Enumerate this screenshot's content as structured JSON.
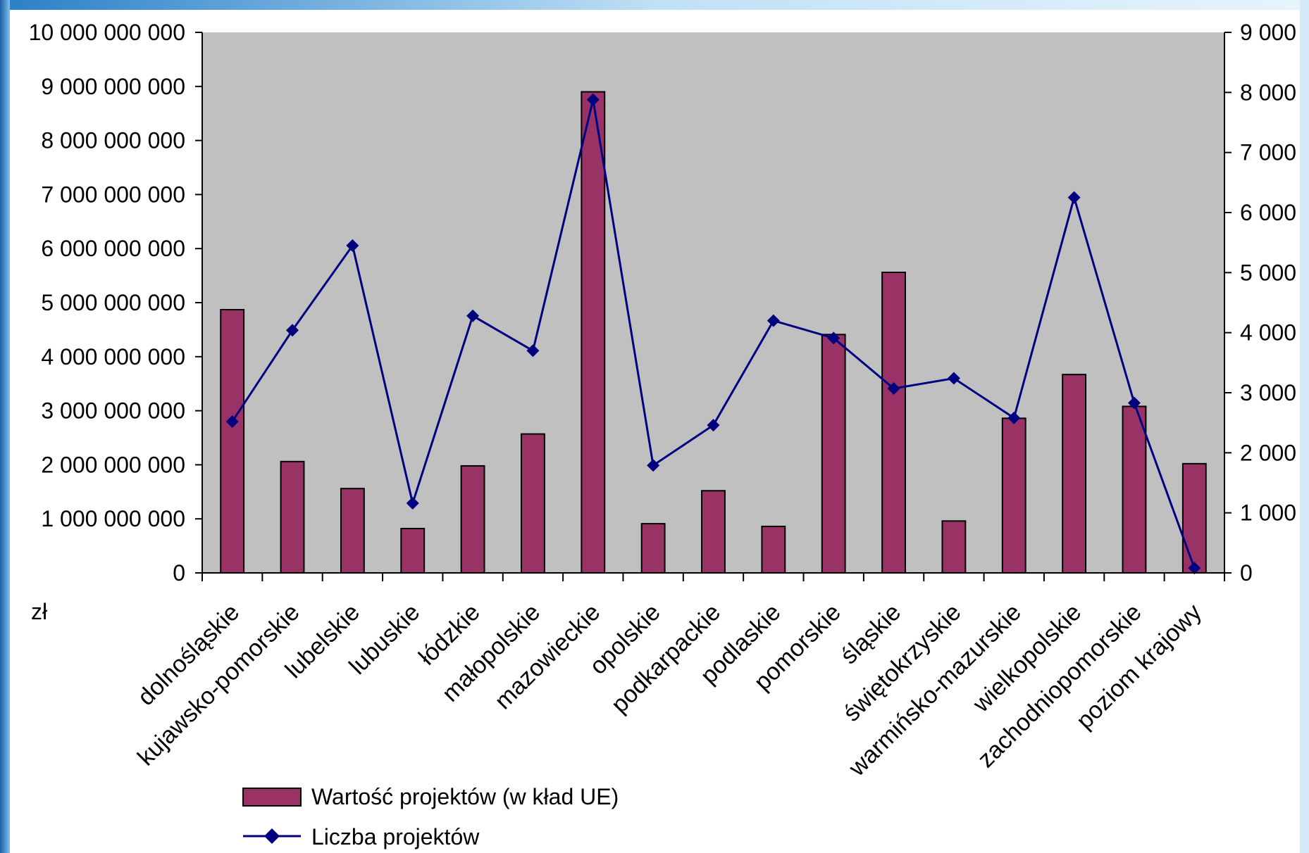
{
  "chart_data": {
    "type": "bar+line",
    "title": "",
    "unit_label": "zł",
    "categories": [
      "dolnośląskie",
      "kujawsko-pomorskie",
      "lubelskie",
      "lubuskie",
      "łódzkie",
      "małopolskie",
      "mazowieckie",
      "opolskie",
      "podkarpackie",
      "podlaskie",
      "pomorskie",
      "śląskie",
      "świętokrzyskie",
      "warmińsko-mazurskie",
      "wielkopolskie",
      "zachodniopomorskie",
      "poziom krajowy"
    ],
    "series": [
      {
        "name": "Wartość projektów  (w kład UE)",
        "type": "bar",
        "axis": "left",
        "values": [
          4870000000,
          2060000000,
          1560000000,
          820000000,
          1980000000,
          2570000000,
          8900000000,
          910000000,
          1520000000,
          860000000,
          4410000000,
          5560000000,
          960000000,
          2860000000,
          3670000000,
          3080000000,
          2020000000
        ]
      },
      {
        "name": "Liczba projektów",
        "type": "line",
        "axis": "right",
        "values": [
          2520,
          4040,
          5450,
          1160,
          4280,
          3700,
          7880,
          1790,
          2460,
          4200,
          3910,
          3070,
          3240,
          2580,
          6250,
          2830,
          80
        ]
      }
    ],
    "y_left": {
      "ylim": [
        0,
        10000000000
      ],
      "ticks": [
        0,
        1000000000,
        2000000000,
        3000000000,
        4000000000,
        5000000000,
        6000000000,
        7000000000,
        8000000000,
        9000000000,
        10000000000
      ],
      "tick_labels": [
        "0",
        "1 000 000 000",
        "2 000 000 000",
        "3 000 000 000",
        "4 000 000 000",
        "5 000 000 000",
        "6 000 000 000",
        "7 000 000 000",
        "8 000 000 000",
        "9 000 000 000",
        "10 000 000 000"
      ]
    },
    "y_right": {
      "ylim": [
        0,
        9000
      ],
      "ticks": [
        0,
        1000,
        2000,
        3000,
        4000,
        5000,
        6000,
        7000,
        8000,
        9000
      ],
      "tick_labels": [
        "0",
        "1 000",
        "2 000",
        "3 000",
        "4 000",
        "5 000",
        "6 000",
        "7 000",
        "8 000",
        "9 000"
      ]
    },
    "grid": false,
    "legend_position": "bottom",
    "colors": {
      "plot_background": "#c0c0c0",
      "bar_fill": "#993366",
      "bar_stroke": "#000000",
      "line": "#000080",
      "marker": "#000080"
    }
  }
}
